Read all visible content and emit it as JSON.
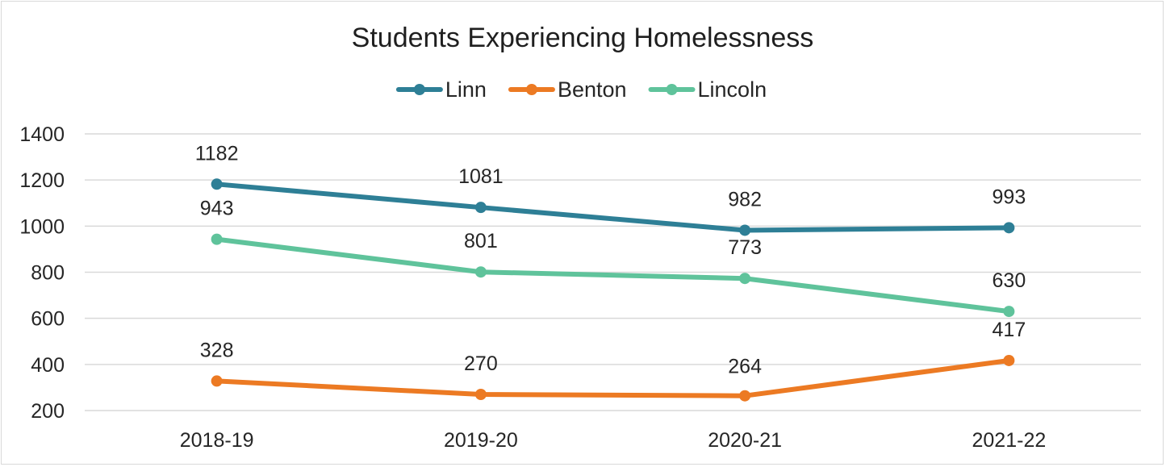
{
  "chart_data": {
    "type": "line",
    "title": "Students Experiencing Homelessness",
    "categories": [
      "2018-19",
      "2019-20",
      "2020-21",
      "2021-22"
    ],
    "series": [
      {
        "name": "Linn",
        "color": "#2e7f96",
        "values": [
          1182,
          1081,
          982,
          993
        ]
      },
      {
        "name": "Benton",
        "color": "#ec7a23",
        "values": [
          328,
          270,
          264,
          417
        ]
      },
      {
        "name": "Lincoln",
        "color": "#5fc39b",
        "values": [
          943,
          801,
          773,
          630
        ]
      }
    ],
    "yticks": [
      200,
      400,
      600,
      800,
      1000,
      1200,
      1400
    ],
    "ylim": [
      200,
      1400
    ],
    "xlabel": "",
    "ylabel": "",
    "grid": true,
    "legend": "top-center"
  }
}
